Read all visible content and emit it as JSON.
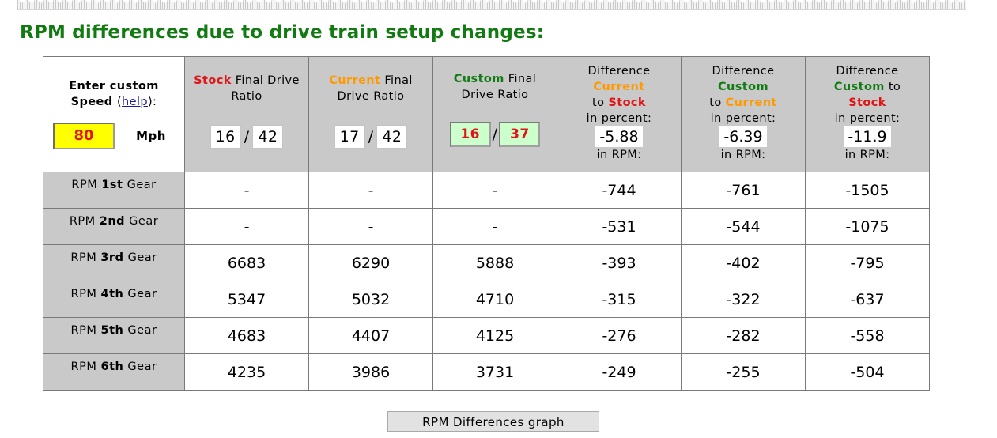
{
  "page": {
    "title": "RPM differences due to drive train setup changes:"
  },
  "speed": {
    "label_line1": "Enter custom",
    "label_line2": "Speed",
    "help_open": "(",
    "help_link": "help",
    "help_close": "):",
    "value": "80",
    "unit": "Mph"
  },
  "columns": {
    "stock": {
      "highlight": "Stock",
      "rest_line1": " Final Drive",
      "line2": "Ratio",
      "front": "16",
      "rear": "42"
    },
    "current": {
      "highlight": "Current",
      "rest_line1": " Final",
      "line2": "Drive Ratio",
      "front": "17",
      "rear": "42"
    },
    "custom": {
      "highlight": "Custom",
      "rest_line1": " Final",
      "line2": "Drive Ratio",
      "front": "16",
      "rear": "37"
    },
    "diff1": {
      "line1": "Difference",
      "hl1": "Current",
      "mid": "to ",
      "hl2": "Stock",
      "pct_label": "in percent:",
      "pct_value": "-5.88",
      "rpm_label": "in RPM:"
    },
    "diff2": {
      "line1": "Difference",
      "hl1": "Custom",
      "mid": "to ",
      "hl2": "Current",
      "pct_label": "in percent:",
      "pct_value": "-6.39",
      "rpm_label": "in RPM:"
    },
    "diff3": {
      "line1": "Difference",
      "hl1": "Custom",
      "mid_after": " to",
      "hl2": "Stock",
      "pct_label": "in percent:",
      "pct_value": "-11.9",
      "rpm_label": "in RPM:"
    },
    "slash": "/"
  },
  "rows": [
    {
      "label_pre": "RPM ",
      "gear": "1st",
      "label_post": " Gear",
      "stock": "-",
      "current": "-",
      "custom": "-",
      "d1": "-744",
      "d2": "-761",
      "d3": "-1505"
    },
    {
      "label_pre": "RPM ",
      "gear": "2nd",
      "label_post": " Gear",
      "stock": "-",
      "current": "-",
      "custom": "-",
      "d1": "-531",
      "d2": "-544",
      "d3": "-1075"
    },
    {
      "label_pre": "RPM ",
      "gear": "3rd",
      "label_post": " Gear",
      "stock": "6683",
      "current": "6290",
      "custom": "5888",
      "d1": "-393",
      "d2": "-402",
      "d3": "-795"
    },
    {
      "label_pre": "RPM ",
      "gear": "4th",
      "label_post": " Gear",
      "stock": "5347",
      "current": "5032",
      "custom": "4710",
      "d1": "-315",
      "d2": "-322",
      "d3": "-637"
    },
    {
      "label_pre": "RPM ",
      "gear": "5th",
      "label_post": " Gear",
      "stock": "4683",
      "current": "4407",
      "custom": "4125",
      "d1": "-276",
      "d2": "-282",
      "d3": "-558"
    },
    {
      "label_pre": "RPM ",
      "gear": "6th",
      "label_post": " Gear",
      "stock": "4235",
      "current": "3986",
      "custom": "3731",
      "d1": "-249",
      "d2": "-255",
      "d3": "-504"
    }
  ],
  "graph_button": {
    "label": "RPM Differences graph"
  },
  "colors": {
    "title": "#117a11",
    "stock": "#e01515",
    "current": "#ff9900",
    "custom": "#117a11",
    "header_bg": "#c9c9c9",
    "speed_bg": "#ffff00",
    "custom_input_bg": "#ccffcc"
  }
}
